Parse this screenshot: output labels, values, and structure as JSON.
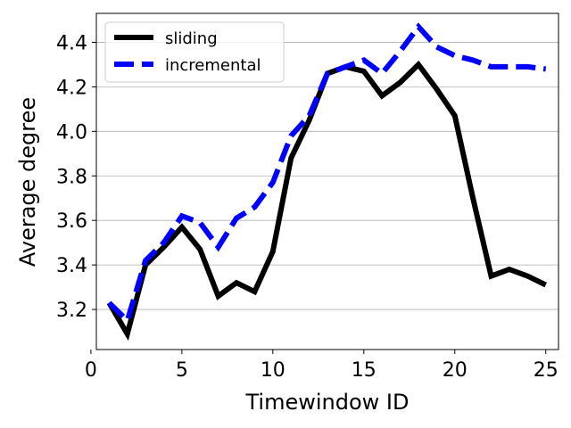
{
  "chart_data": {
    "type": "line",
    "title": "",
    "xlabel": "Timewindow ID",
    "ylabel": "Average degree",
    "xlim": [
      0.3,
      25.7
    ],
    "ylim": [
      3.02,
      4.53
    ],
    "xticks": [
      0,
      5,
      10,
      15,
      20,
      25
    ],
    "yticks": [
      3.2,
      3.4,
      3.6,
      3.8,
      4.0,
      4.2,
      4.4
    ],
    "ytick_labels": [
      "3.2",
      "3.4",
      "3.6",
      "3.8",
      "4.0",
      "4.2",
      "4.4"
    ],
    "grid": "horizontal",
    "legend_position": "top-left",
    "x": [
      1,
      2,
      3,
      4,
      5,
      6,
      7,
      8,
      9,
      10,
      11,
      12,
      13,
      14,
      15,
      16,
      17,
      18,
      19,
      20,
      21,
      22,
      23,
      24,
      25
    ],
    "series": [
      {
        "name": "sliding",
        "color": "#000000",
        "style": "solid",
        "values": [
          3.23,
          3.09,
          3.4,
          3.48,
          3.57,
          3.47,
          3.26,
          3.32,
          3.28,
          3.46,
          3.88,
          4.05,
          4.26,
          4.29,
          4.27,
          4.16,
          4.22,
          4.3,
          4.19,
          4.07,
          3.7,
          3.35,
          3.38,
          3.35,
          3.31
        ]
      },
      {
        "name": "incremental",
        "color": "#0000ff",
        "style": "dashed",
        "values": [
          3.23,
          3.15,
          3.42,
          3.5,
          3.62,
          3.59,
          3.48,
          3.61,
          3.66,
          3.77,
          3.98,
          4.07,
          4.26,
          4.29,
          4.32,
          4.26,
          4.36,
          4.47,
          4.38,
          4.34,
          4.32,
          4.29,
          4.29,
          4.29,
          4.28
        ]
      }
    ]
  }
}
